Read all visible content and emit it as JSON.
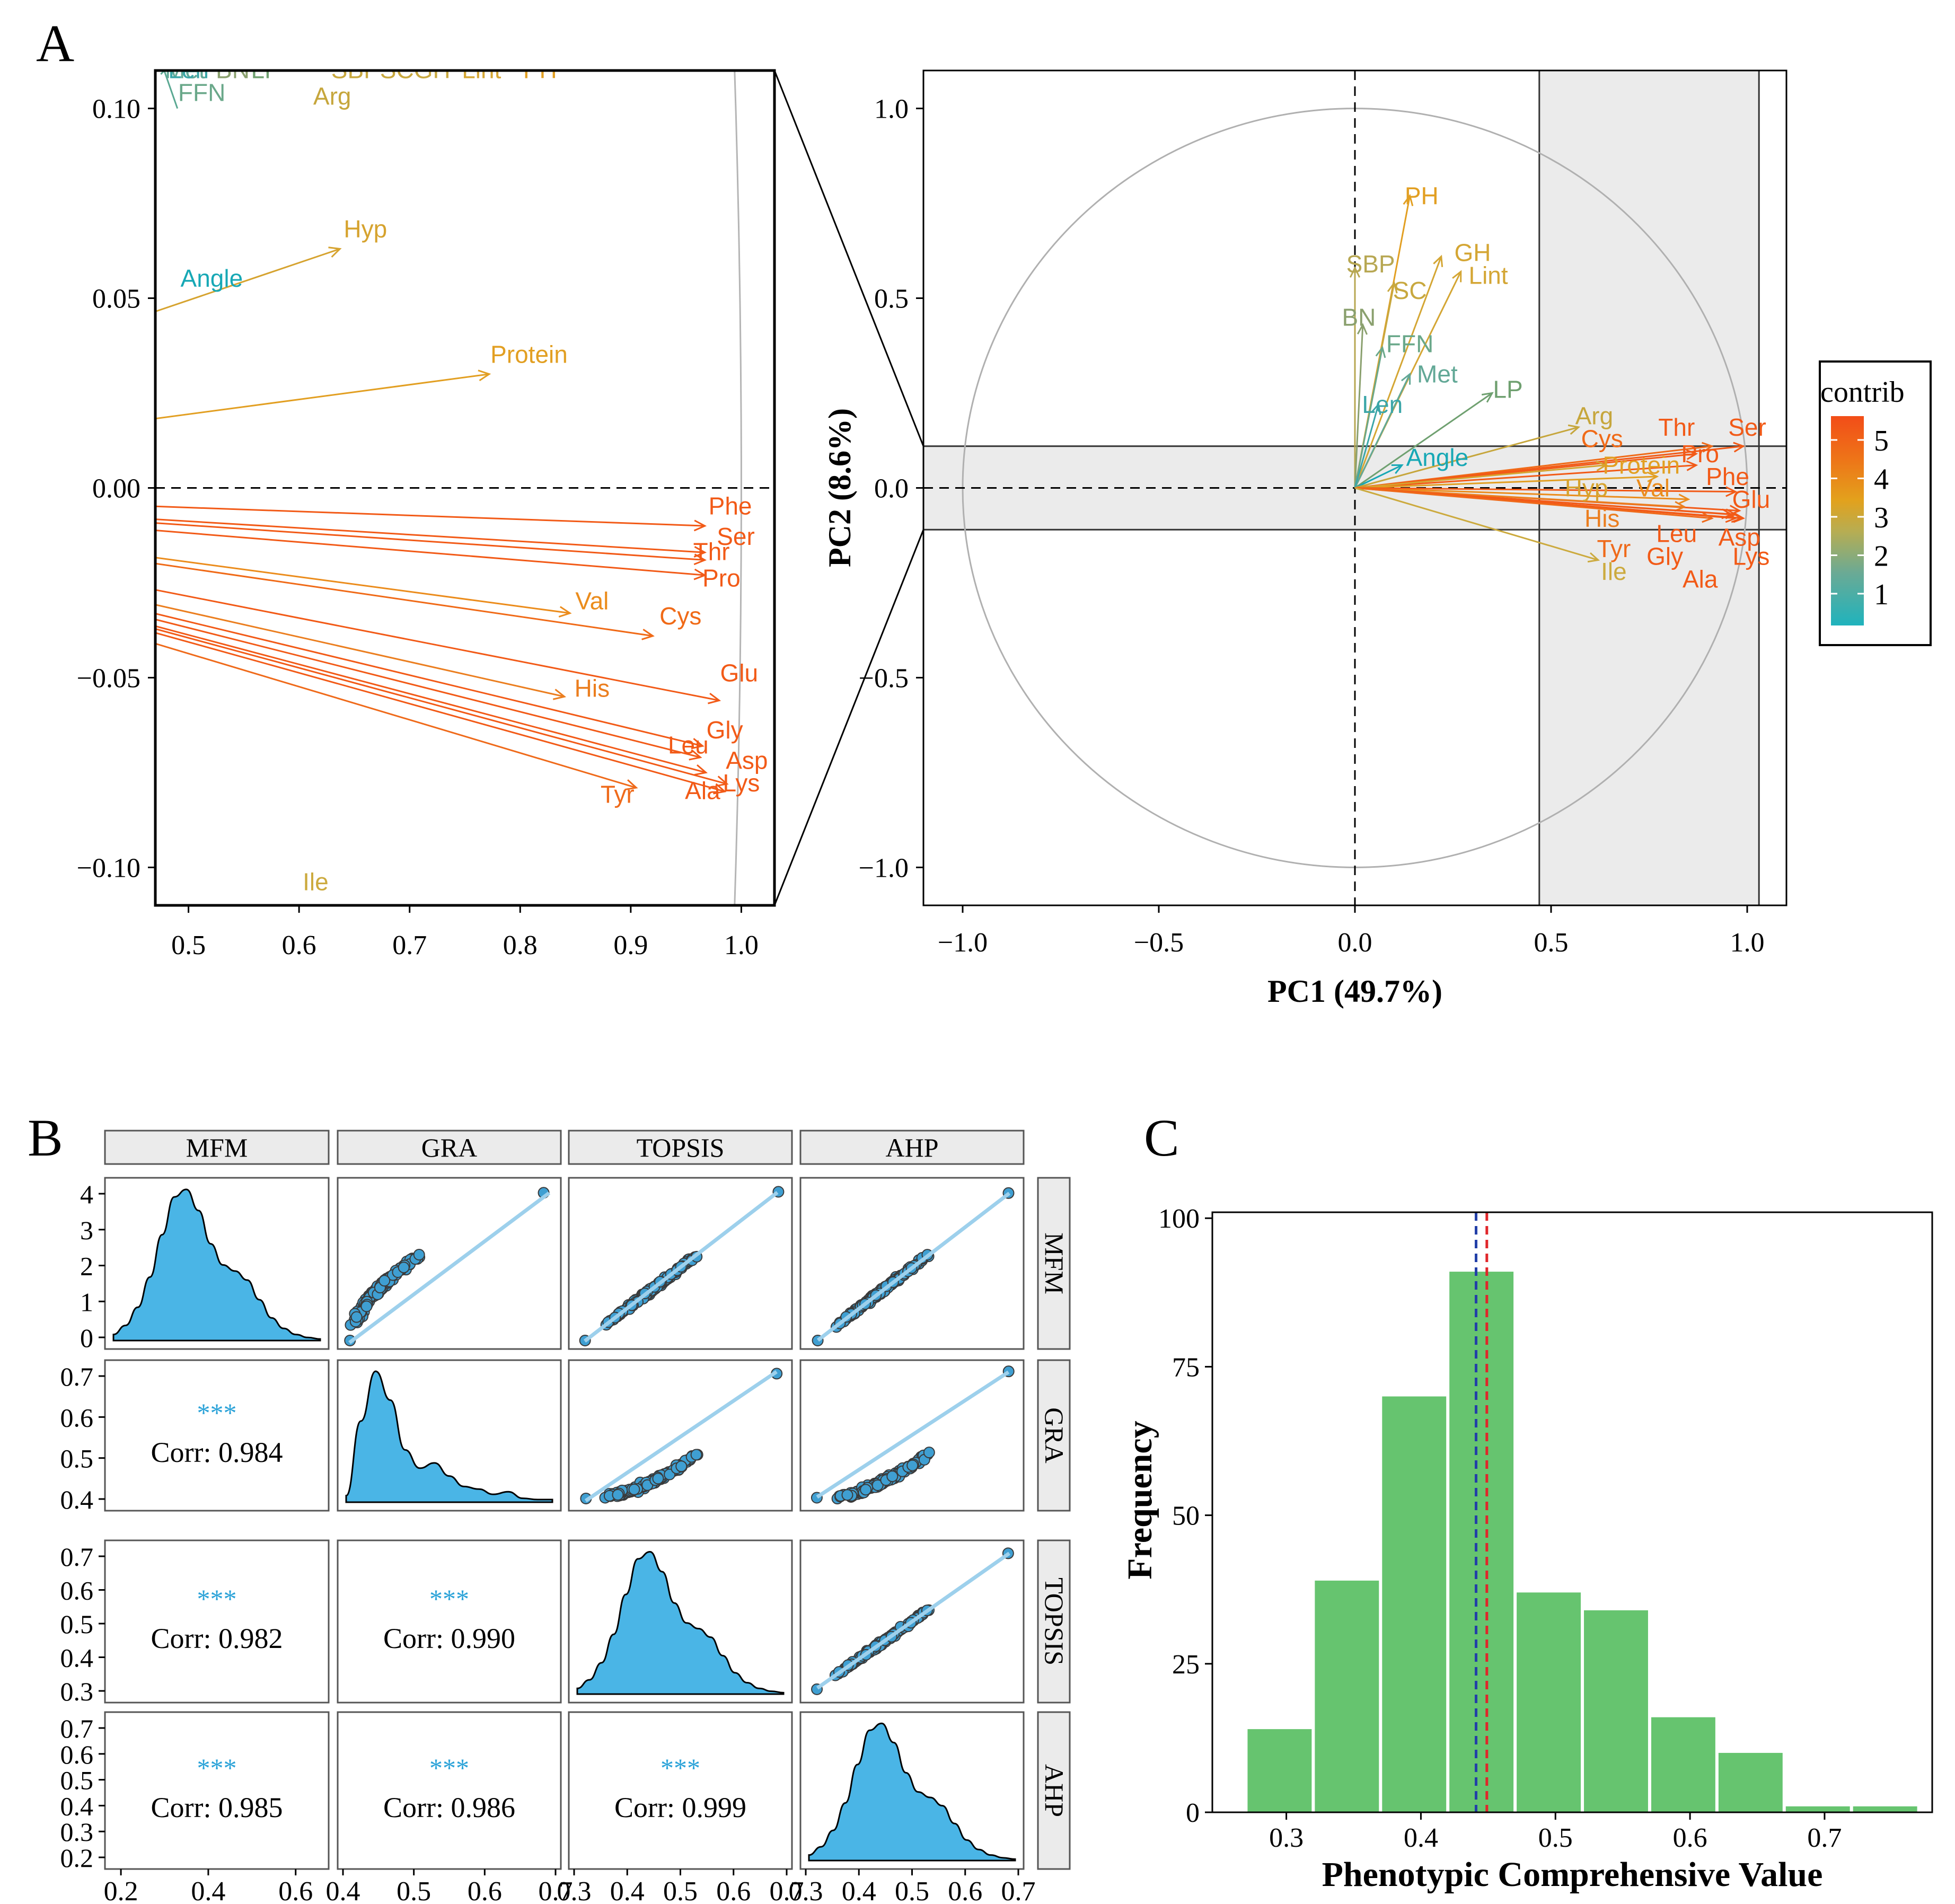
{
  "panel_labels": {
    "a": "A",
    "b": "B",
    "c": "C"
  },
  "contrib_colors": {
    "ramp": [
      "#1fb3bd",
      "#6aaa95",
      "#b7ad52",
      "#e3a11c",
      "#ee7318",
      "#f24d18"
    ],
    "palette": {
      "Angle": "#17a8b5",
      "Len": "#3ba6a8",
      "Met": "#62a896",
      "FFN": "#6aa88a",
      "LP": "#6fa070",
      "BN": "#8aa06e",
      "SBP": "#b7a752",
      "SC": "#c8a83f",
      "GH": "#d4a634",
      "Lint": "#d4a634",
      "Arg": "#c6a63c",
      "Ile": "#ccaa3e",
      "Hyp": "#d6a32f",
      "Protein": "#e29f22",
      "PH": "#e29f22",
      "Val": "#eb8c1c",
      "His": "#eb7e1f",
      "Cys": "#f06a17",
      "Tyr": "#ef6a1a",
      "default": "#f25a17"
    }
  },
  "chart_data": [
    {
      "id": "A-zoom",
      "type": "scatter",
      "subtype": "pca-variable-arrows-zoom",
      "xlim": [
        0.47,
        1.03
      ],
      "ylim": [
        -0.11,
        0.11
      ],
      "xticks": [
        "0.5",
        "0.6",
        "0.7",
        "0.8",
        "0.9",
        "1.0"
      ],
      "yticks": [
        "0.10",
        "0.05",
        "0.00",
        "−0.05",
        "−0.10"
      ],
      "variables": [
        {
          "name": "Phe",
          "x": 0.967,
          "y": -0.01
        },
        {
          "name": "Ser",
          "x": 0.967,
          "y": -0.017
        },
        {
          "name": "Thr",
          "x": 0.967,
          "y": -0.019
        },
        {
          "name": "Pro",
          "x": 0.967,
          "y": -0.023
        },
        {
          "name": "Val",
          "x": 0.845,
          "y": -0.033
        },
        {
          "name": "Cys",
          "x": 0.92,
          "y": -0.039
        },
        {
          "name": "Glu",
          "x": 0.98,
          "y": -0.056
        },
        {
          "name": "His",
          "x": 0.84,
          "y": -0.055
        },
        {
          "name": "Gly",
          "x": 0.965,
          "y": -0.068
        },
        {
          "name": "Leu",
          "x": 0.963,
          "y": -0.071
        },
        {
          "name": "Asp",
          "x": 0.968,
          "y": -0.075
        },
        {
          "name": "Lys",
          "x": 0.987,
          "y": -0.078
        },
        {
          "name": "Ala",
          "x": 0.985,
          "y": -0.08
        },
        {
          "name": "Tyr",
          "x": 0.905,
          "y": -0.079
        },
        {
          "name": "Hyp",
          "x": 0.637,
          "y": 0.063
        },
        {
          "name": "Protein",
          "x": 0.772,
          "y": 0.03
        }
      ],
      "labels": [
        {
          "text": "Phe",
          "x": 0.99,
          "y": -0.007
        },
        {
          "text": "Ser",
          "x": 0.995,
          "y": -0.015
        },
        {
          "text": "Thr",
          "x": 0.973,
          "y": -0.019
        },
        {
          "text": "Pro",
          "x": 0.982,
          "y": -0.026
        },
        {
          "text": "Val",
          "x": 0.865,
          "y": -0.032
        },
        {
          "text": "Cys",
          "x": 0.945,
          "y": -0.036
        },
        {
          "text": "Glu",
          "x": 0.998,
          "y": -0.051
        },
        {
          "text": "His",
          "x": 0.865,
          "y": -0.055
        },
        {
          "text": "Gly",
          "x": 0.985,
          "y": -0.066
        },
        {
          "text": "Leu",
          "x": 0.952,
          "y": -0.07
        },
        {
          "text": "Asp",
          "x": 1.005,
          "y": -0.074
        },
        {
          "text": "Lys",
          "x": 1.0,
          "y": -0.08
        },
        {
          "text": "Ala",
          "x": 0.965,
          "y": -0.082
        },
        {
          "text": "Tyr",
          "x": 0.888,
          "y": -0.083
        },
        {
          "text": "Hyp",
          "x": 0.66,
          "y": 0.066
        },
        {
          "text": "Angle",
          "x": 0.521,
          "y": 0.053
        },
        {
          "text": "Protein",
          "x": 0.808,
          "y": 0.033
        },
        {
          "text": "Arg",
          "x": 0.63,
          "y": 0.101
        },
        {
          "text": "FFN",
          "x": 0.512,
          "y": 0.102
        },
        {
          "text": "Ile",
          "x": 0.615,
          "y": -0.106
        },
        {
          "text": "PH",
          "x": 0.818,
          "y": 0.108
        },
        {
          "text": "Lint",
          "x": 0.765,
          "y": 0.108
        },
        {
          "text": "SBPSCGH",
          "x": 0.683,
          "y": 0.108
        },
        {
          "text": "LP",
          "x": 0.57,
          "y": 0.108
        },
        {
          "text": "BN",
          "x": 0.54,
          "y": 0.108
        },
        {
          "text": "Met",
          "x": 0.497,
          "y": 0.108
        },
        {
          "text": "Len",
          "x": 0.5,
          "y": 0.108
        }
      ]
    },
    {
      "id": "A-main",
      "type": "scatter",
      "subtype": "pca-variable-correlation-circle",
      "xlabel": "PC1 (49.7%)",
      "ylabel": "PC2 (8.6%)",
      "xlim": [
        -1.1,
        1.1
      ],
      "ylim": [
        -1.1,
        1.1
      ],
      "xticks": [
        "−1.0",
        "−0.5",
        "0.0",
        "0.5",
        "1.0"
      ],
      "yticks": [
        "1.0",
        "0.5",
        "0.0",
        "−0.5",
        "−1.0"
      ],
      "zoom_region": {
        "x": [
          0.47,
          1.03
        ],
        "y": [
          -0.11,
          0.11
        ]
      },
      "legend": {
        "title": "contrib",
        "ticks": [
          "5",
          "4",
          "3",
          "2",
          "1"
        ],
        "position": "right"
      },
      "variables": [
        {
          "name": "PH",
          "x": 0.14,
          "y": 0.77
        },
        {
          "name": "SBP",
          "x": 0.0,
          "y": 0.58
        },
        {
          "name": "GH",
          "x": 0.22,
          "y": 0.61
        },
        {
          "name": "SC",
          "x": 0.1,
          "y": 0.54
        },
        {
          "name": "Lint",
          "x": 0.27,
          "y": 0.57
        },
        {
          "name": "BN",
          "x": 0.02,
          "y": 0.43
        },
        {
          "name": "FFN",
          "x": 0.07,
          "y": 0.37
        },
        {
          "name": "Met",
          "x": 0.14,
          "y": 0.3
        },
        {
          "name": "LP",
          "x": 0.35,
          "y": 0.25
        },
        {
          "name": "Len",
          "x": 0.06,
          "y": 0.22
        },
        {
          "name": "Angle",
          "x": 0.12,
          "y": 0.06
        },
        {
          "name": "Arg",
          "x": 0.57,
          "y": 0.16
        },
        {
          "name": "Cys",
          "x": 0.91,
          "y": 0.11
        },
        {
          "name": "Thr",
          "x": 0.87,
          "y": 0.09
        },
        {
          "name": "Ser",
          "x": 0.99,
          "y": 0.11
        },
        {
          "name": "Pro",
          "x": 0.87,
          "y": 0.06
        },
        {
          "name": "Protein",
          "x": 0.77,
          "y": 0.03
        },
        {
          "name": "Hyp",
          "x": 0.64,
          "y": 0.06
        },
        {
          "name": "Val",
          "x": 0.85,
          "y": -0.03
        },
        {
          "name": "Phe",
          "x": 0.97,
          "y": -0.01
        },
        {
          "name": "Glu",
          "x": 0.98,
          "y": -0.06
        },
        {
          "name": "His",
          "x": 0.84,
          "y": -0.05
        },
        {
          "name": "Leu",
          "x": 0.96,
          "y": -0.07
        },
        {
          "name": "Asp",
          "x": 0.97,
          "y": -0.08
        },
        {
          "name": "Lys",
          "x": 0.99,
          "y": -0.08
        },
        {
          "name": "Gly",
          "x": 0.97,
          "y": -0.07
        },
        {
          "name": "Ala",
          "x": 0.985,
          "y": -0.08
        },
        {
          "name": "Tyr",
          "x": 0.91,
          "y": -0.08
        },
        {
          "name": "Ile",
          "x": 0.62,
          "y": -0.19
        }
      ],
      "labels": [
        {
          "text": "PH",
          "x": 0.17,
          "y": 0.77
        },
        {
          "text": "SBP",
          "x": 0.04,
          "y": 0.59
        },
        {
          "text": "GH",
          "x": 0.3,
          "y": 0.62
        },
        {
          "text": "SC",
          "x": 0.14,
          "y": 0.52
        },
        {
          "text": "Lint",
          "x": 0.34,
          "y": 0.56
        },
        {
          "text": "BN",
          "x": 0.01,
          "y": 0.45
        },
        {
          "text": "FFN",
          "x": 0.14,
          "y": 0.38
        },
        {
          "text": "Met",
          "x": 0.21,
          "y": 0.3
        },
        {
          "text": "LP",
          "x": 0.39,
          "y": 0.26
        },
        {
          "text": "Len",
          "x": 0.07,
          "y": 0.22
        },
        {
          "text": "Angle",
          "x": 0.21,
          "y": 0.08
        },
        {
          "text": "Arg",
          "x": 0.61,
          "y": 0.19
        },
        {
          "text": "Cys",
          "x": 0.63,
          "y": 0.13
        },
        {
          "text": "Thr",
          "x": 0.82,
          "y": 0.16
        },
        {
          "text": "Ser",
          "x": 1.0,
          "y": 0.16
        },
        {
          "text": "Pro",
          "x": 0.88,
          "y": 0.09
        },
        {
          "text": "Protein",
          "x": 0.73,
          "y": 0.06
        },
        {
          "text": "Phe",
          "x": 0.95,
          "y": 0.03
        },
        {
          "text": "Hyp",
          "x": 0.59,
          "y": 0.0
        },
        {
          "text": "Val",
          "x": 0.76,
          "y": 0.0
        },
        {
          "text": "Glu",
          "x": 1.01,
          "y": -0.03
        },
        {
          "text": "His",
          "x": 0.63,
          "y": -0.08
        },
        {
          "text": "Leu",
          "x": 0.82,
          "y": -0.12
        },
        {
          "text": "Asp",
          "x": 0.98,
          "y": -0.13
        },
        {
          "text": "Tyr",
          "x": 0.66,
          "y": -0.16
        },
        {
          "text": "Gly",
          "x": 0.79,
          "y": -0.18
        },
        {
          "text": "Lys",
          "x": 1.01,
          "y": -0.18
        },
        {
          "text": "Ile",
          "x": 0.66,
          "y": -0.22
        },
        {
          "text": "Ala",
          "x": 0.88,
          "y": -0.24
        }
      ]
    },
    {
      "id": "B",
      "type": "scatter",
      "subtype": "pairs-matrix",
      "variables": [
        "MFM",
        "GRA",
        "TOPSIS",
        "AHP"
      ],
      "correlations": [
        {
          "row": "GRA",
          "col": "MFM",
          "stars": "***",
          "text": "Corr: 0.984"
        },
        {
          "row": "TOPSIS",
          "col": "MFM",
          "stars": "***",
          "text": "Corr: 0.982"
        },
        {
          "row": "TOPSIS",
          "col": "GRA",
          "stars": "***",
          "text": "Corr: 0.990"
        },
        {
          "row": "AHP",
          "col": "MFM",
          "stars": "***",
          "text": "Corr: 0.985"
        },
        {
          "row": "AHP",
          "col": "GRA",
          "stars": "***",
          "text": "Corr: 0.986"
        },
        {
          "row": "AHP",
          "col": "TOPSIS",
          "stars": "***",
          "text": "Corr: 0.999"
        }
      ],
      "y_ticks": {
        "MFM": [
          "4",
          "3",
          "2",
          "1",
          "0"
        ],
        "GRA": [
          "0.7",
          "0.6",
          "0.5",
          "0.4"
        ],
        "TOPSIS": [
          "0.7",
          "0.6",
          "0.5",
          "0.4",
          "0.3"
        ],
        "AHP": [
          "0.7",
          "0.6",
          "0.5",
          "0.4",
          "0.3",
          "0.2"
        ]
      },
      "x_ticks": {
        "MFM": [
          "0.2",
          "0.4",
          "0.6"
        ],
        "GRA": [
          "0.4",
          "0.5",
          "0.6",
          "0.7"
        ],
        "TOPSIS": [
          "0.3",
          "0.4",
          "0.5",
          "0.6",
          "0.7"
        ],
        "AHP": [
          "0.3",
          "0.4",
          "0.5",
          "0.6",
          "0.7"
        ]
      },
      "density_shape": [
        0.04,
        0.1,
        0.22,
        0.42,
        0.7,
        0.95,
        1.0,
        0.86,
        0.64,
        0.5,
        0.46,
        0.4,
        0.27,
        0.15,
        0.08,
        0.04,
        0.02,
        0.01
      ],
      "gra_density_shape": [
        0.05,
        0.62,
        1.0,
        0.78,
        0.4,
        0.26,
        0.3,
        0.2,
        0.12,
        0.1,
        0.06,
        0.08,
        0.03,
        0.02,
        0.02
      ],
      "scatter_ranges": {
        "MFM": [
          0.0,
          4.5
        ],
        "GRA": [
          0.38,
          0.74
        ],
        "TOPSIS": [
          0.25,
          0.75
        ],
        "AHP": [
          0.25,
          0.75
        ]
      }
    },
    {
      "id": "C",
      "type": "bar",
      "subtype": "histogram",
      "xlabel": "Phenotypic Comprehensive Value",
      "ylabel": "Frequency",
      "xlim": [
        0.245,
        0.78
      ],
      "ylim": [
        0,
        101
      ],
      "xticks": [
        "0.3",
        "0.4",
        "0.5",
        "0.6",
        "0.7"
      ],
      "yticks": [
        "0",
        "25",
        "50",
        "75",
        "100"
      ],
      "bin_edges": [
        0.27,
        0.32,
        0.37,
        0.42,
        0.47,
        0.52,
        0.57,
        0.62,
        0.67,
        0.72,
        0.77
      ],
      "values": [
        14,
        39,
        70,
        91,
        37,
        34,
        16,
        10,
        1,
        1
      ],
      "bar_color": "#66c46f",
      "vlines": [
        {
          "x": 0.441,
          "color": "#2340a8"
        },
        {
          "x": 0.449,
          "color": "#e0262a"
        }
      ]
    }
  ]
}
